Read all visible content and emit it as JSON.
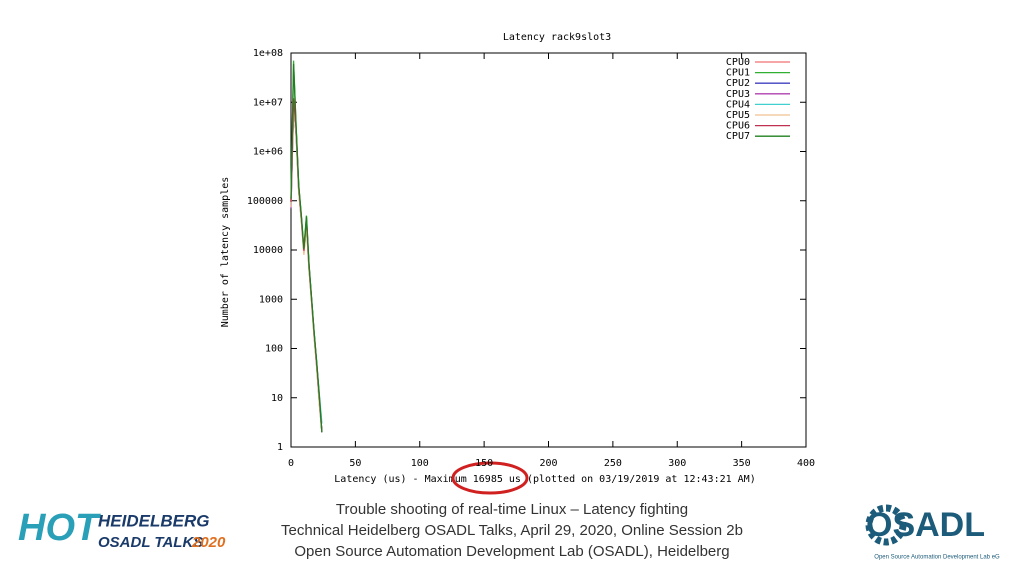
{
  "chart_data": {
    "type": "line",
    "title": "Latency rack9slot3",
    "x_label": "Latency (us) - Maximum 16985 us (plotted on 03/19/2019 at 12:43:21 AM)",
    "y_label": "Number of latency samples",
    "log_y": true,
    "xlim": [
      0,
      400
    ],
    "xticks": [
      0,
      50,
      100,
      150,
      200,
      250,
      300,
      350,
      400
    ],
    "ylim": [
      1,
      100000000
    ],
    "yticks": [
      1,
      10,
      100,
      1000,
      10000,
      100000,
      {
        "value": 1000000,
        "label": "1e+06"
      },
      {
        "value": 10000000,
        "label": "1e+07"
      },
      {
        "value": 100000000,
        "label": "1e+08"
      }
    ],
    "legend": "top-right",
    "x": [
      0,
      2,
      4,
      6,
      8,
      10,
      12,
      14,
      16,
      18,
      20,
      22,
      24
    ],
    "series": [
      {
        "name": "CPU0",
        "color": "#f07070",
        "values": [
          90000,
          10000000,
          2000000,
          150000,
          40000,
          9000,
          30000,
          4000,
          900,
          180,
          40,
          8,
          2
        ]
      },
      {
        "name": "CPU1",
        "color": "#30b030",
        "values": [
          100000,
          70000000,
          3000000,
          200000,
          50000,
          10000,
          50000,
          5000,
          1000,
          200,
          50,
          10,
          2
        ]
      },
      {
        "name": "CPU2",
        "color": "#4040c0",
        "values": [
          80000,
          8000000,
          2500000,
          170000,
          45000,
          9500,
          40000,
          4500,
          950,
          190,
          45,
          9,
          2
        ]
      },
      {
        "name": "CPU3",
        "color": "#b040b0",
        "values": [
          70000,
          9000000,
          2200000,
          160000,
          42000,
          9000,
          35000,
          4200,
          900,
          170,
          42,
          8,
          2
        ]
      },
      {
        "name": "CPU4",
        "color": "#40d0d0",
        "values": [
          85000,
          9500000,
          2400000,
          180000,
          48000,
          9800,
          38000,
          4600,
          980,
          210,
          48,
          12,
          3
        ]
      },
      {
        "name": "CPU5",
        "color": "#f0c090",
        "values": [
          75000,
          8500000,
          2300000,
          150000,
          40000,
          8000,
          30000,
          4000,
          850,
          160,
          40,
          7,
          2
        ]
      },
      {
        "name": "CPU6",
        "color": "#c03050",
        "values": [
          95000,
          12000000,
          2800000,
          190000,
          47000,
          9700,
          42000,
          4700,
          970,
          200,
          47,
          10,
          2
        ]
      },
      {
        "name": "CPU7",
        "color": "#208020",
        "values": [
          110000,
          60000000,
          3200000,
          210000,
          52000,
          10500,
          48000,
          5200,
          1050,
          210,
          52,
          11,
          2
        ]
      }
    ]
  },
  "footer": {
    "lines": [
      "Trouble shooting of real-time Linux – Latency fighting",
      "Technical Heidelberg OSADL Talks, April 29, 2020, Online Session 2b",
      "Open Source Automation Development Lab (OSADL), Heidelberg"
    ]
  },
  "logos": {
    "left": {
      "hot": "HOT",
      "line1": "HEIDELBERG",
      "line2": "OSADL TALKS",
      "year": "2020"
    },
    "right": {
      "name": "OSADL",
      "sub": "Open Source Automation Development Lab eG"
    }
  }
}
